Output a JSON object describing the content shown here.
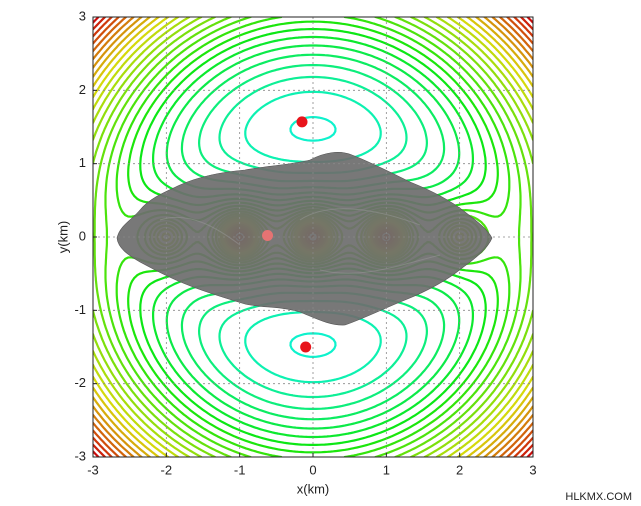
{
  "chart_data": {
    "type": "scatter",
    "xlabel": "x(km)",
    "ylabel": "y(km)",
    "xlim": [
      -3,
      3
    ],
    "ylim": [
      -3,
      3
    ],
    "xticks": [
      -3,
      -2,
      -1,
      0,
      1,
      2,
      3
    ],
    "yticks": [
      -3,
      -2,
      -1,
      0,
      1,
      2,
      3
    ],
    "grid": true,
    "series": [
      {
        "color": "#e8141b",
        "x": [
          -0.15,
          -0.1
        ],
        "y": [
          1.57,
          -1.5
        ]
      },
      {
        "color": "#e57373",
        "x": [
          -0.62
        ],
        "y": [
          0.02
        ]
      }
    ]
  },
  "watermark": "HLKMX.COM"
}
